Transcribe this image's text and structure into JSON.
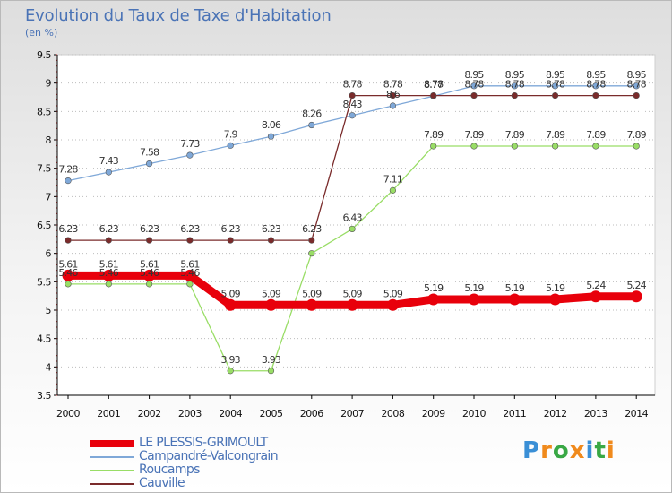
{
  "chart_title": "Evolution du Taux de Taxe d'Habitation",
  "chart_subtitle": "(en %)",
  "brand": {
    "text": "Proxiti"
  },
  "chart_data": {
    "type": "line",
    "title": "Evolution du Taux de Taxe d'Habitation",
    "subtitle": "(en %)",
    "xlabel": "",
    "ylabel": "",
    "x": [
      "2000",
      "2001",
      "2002",
      "2003",
      "2004",
      "2005",
      "2006",
      "2007",
      "2008",
      "2009",
      "2010",
      "2011",
      "2012",
      "2013",
      "2014"
    ],
    "ylim": [
      3.5,
      9.5
    ],
    "yticks": [
      "3.5",
      "4",
      "4.5",
      "5",
      "5.5",
      "6",
      "6.5",
      "7",
      "7.5",
      "8",
      "8.5",
      "9",
      "9.5"
    ],
    "grid": "horizontal dotted",
    "legend_position": "bottom-left",
    "series": [
      {
        "name": "LE PLESSIS-GRIMOULT",
        "color": "#e8000b",
        "values": [
          5.61,
          5.61,
          5.61,
          5.61,
          5.09,
          5.09,
          5.09,
          5.09,
          5.09,
          5.19,
          5.19,
          5.19,
          5.19,
          5.24,
          5.24
        ],
        "labels": [
          "5.61",
          "5.61",
          "5.61",
          "5.61",
          "5.09",
          "5.09",
          "5.09",
          "5.09",
          "5.09",
          "5.19",
          "5.19",
          "5.19",
          "5.19",
          "5.24",
          "5.24"
        ]
      },
      {
        "name": "Campandré-Valcongrain",
        "color": "#7fa8d8",
        "values": [
          7.28,
          7.43,
          7.58,
          7.73,
          7.9,
          8.06,
          8.26,
          8.43,
          8.6,
          8.77,
          8.95,
          8.95,
          8.95,
          8.95,
          8.95
        ],
        "labels": [
          "7.28",
          "7.43",
          "7.58",
          "7.73",
          "7.9",
          "8.06",
          "8.26",
          "8.43",
          "8.6",
          "8.77",
          "8.95",
          "8.95",
          "8.95",
          "8.95",
          "8.95"
        ]
      },
      {
        "name": "Roucamps",
        "color": "#99dd66",
        "values": [
          5.46,
          5.46,
          5.46,
          5.46,
          3.93,
          3.93,
          6.0,
          6.43,
          7.11,
          7.89,
          7.89,
          7.89,
          7.89,
          7.89,
          7.89
        ],
        "labels": [
          "5.46",
          "5.46",
          "5.46",
          "5.46",
          "3.93",
          "3.93",
          "",
          "6.43",
          "7.11",
          "7.89",
          "7.89",
          "7.89",
          "7.89",
          "7.89",
          "7.89"
        ]
      },
      {
        "name": "Cauville",
        "color": "#7a2b2b",
        "values": [
          6.23,
          6.23,
          6.23,
          6.23,
          6.23,
          6.23,
          6.23,
          8.78,
          8.78,
          8.78,
          8.78,
          8.78,
          8.78,
          8.78,
          8.78
        ],
        "labels": [
          "6.23",
          "6.23",
          "6.23",
          "6.23",
          "6.23",
          "6.23",
          "6.23",
          "8.78",
          "8.78",
          "8.78",
          "8.78",
          "8.78",
          "8.78",
          "8.78",
          "8.78"
        ]
      }
    ]
  },
  "colors": {
    "title": "#4a73b6",
    "axis": "#000000",
    "grid": "#bbbbbb"
  }
}
